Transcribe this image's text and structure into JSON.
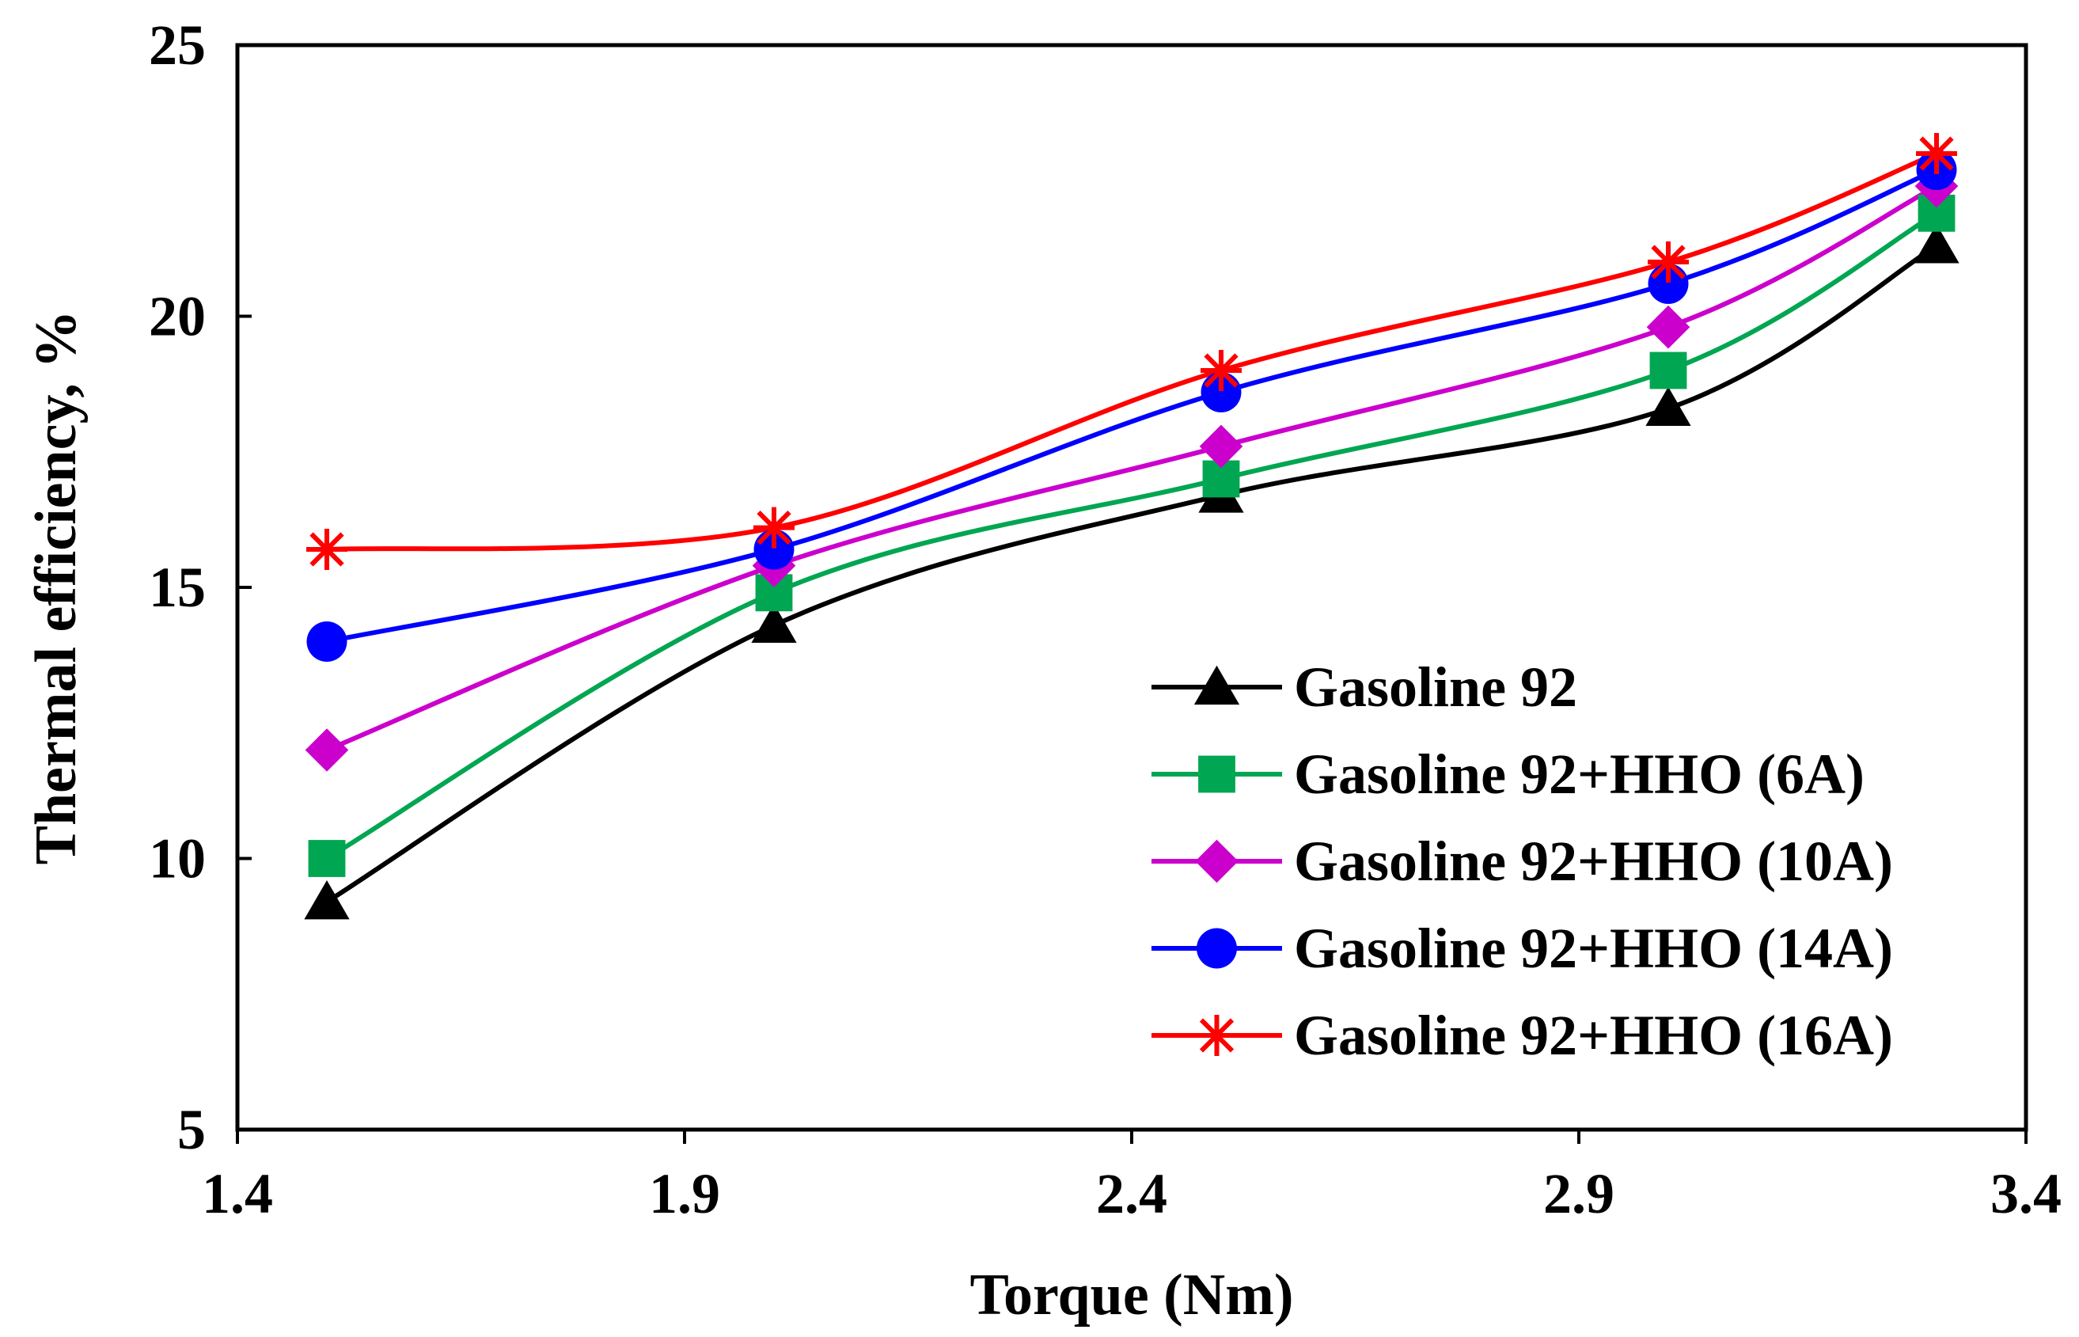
{
  "chart_data": {
    "type": "line",
    "title": "",
    "xlabel": "Torque (Nm)",
    "ylabel": "Thermal efficiency, %",
    "xlim": [
      1.4,
      3.4
    ],
    "ylim": [
      5,
      25
    ],
    "xticks": [
      "1.4",
      "1.9",
      "2.4",
      "2.9",
      "3.4"
    ],
    "yticks": [
      "5",
      "10",
      "15",
      "20",
      "25"
    ],
    "grid": false,
    "legend_position": "bottom-right",
    "x": [
      1.5,
      2.0,
      2.5,
      3.0,
      3.3
    ],
    "series": [
      {
        "name": "Gasoline 92",
        "color": "#000000",
        "marker": "triangle",
        "values": [
          9.2,
          14.3,
          16.7,
          18.3,
          21.3
        ]
      },
      {
        "name": "Gasoline 92+HHO (6A)",
        "color": "#00a651",
        "marker": "square",
        "values": [
          10.0,
          14.9,
          17.0,
          19.0,
          21.9
        ]
      },
      {
        "name": "Gasoline 92+HHO (10A)",
        "color": "#cc00cc",
        "marker": "diamond",
        "values": [
          12.0,
          15.4,
          17.6,
          19.8,
          22.4
        ]
      },
      {
        "name": "Gasoline 92+HHO (14A)",
        "color": "#0000ff",
        "marker": "circle",
        "values": [
          14.0,
          15.7,
          18.6,
          20.6,
          22.7
        ]
      },
      {
        "name": "Gasoline 92+HHO (16A)",
        "color": "#ff0000",
        "marker": "star",
        "values": [
          15.7,
          16.1,
          19.0,
          21.0,
          23.0
        ]
      }
    ]
  }
}
